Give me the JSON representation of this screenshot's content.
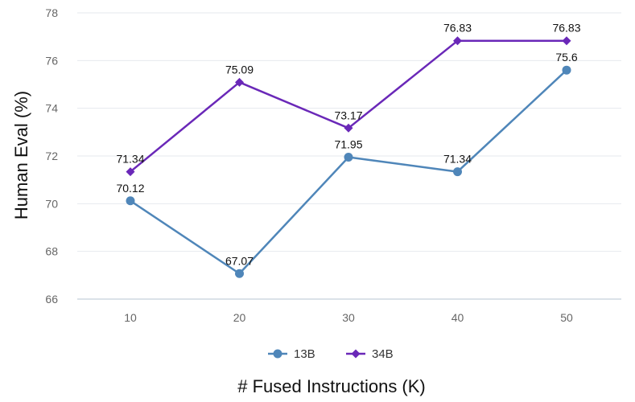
{
  "chart_data": {
    "type": "line",
    "x": [
      10,
      20,
      30,
      40,
      50
    ],
    "xlabel": "# Fused Instructions (K)",
    "ylabel": "Human Eval (%)",
    "ylim": [
      66,
      78
    ],
    "yticks": [
      66,
      68,
      70,
      72,
      74,
      76,
      78
    ],
    "grid": "horizontal",
    "legend": "bottom",
    "series": [
      {
        "name": "13B",
        "values": [
          70.12,
          67.07,
          71.95,
          71.34,
          75.6
        ],
        "labels": [
          "70.12",
          "67.07",
          "71.95",
          "71.34",
          "75.6"
        ],
        "color": "#4f86b9",
        "marker": "circle"
      },
      {
        "name": "34B",
        "values": [
          71.34,
          75.09,
          73.17,
          76.83,
          76.83
        ],
        "labels": [
          "71.34",
          "75.09",
          "73.17",
          "76.83",
          "76.83"
        ],
        "color": "#6a28b8",
        "marker": "diamond"
      }
    ]
  }
}
